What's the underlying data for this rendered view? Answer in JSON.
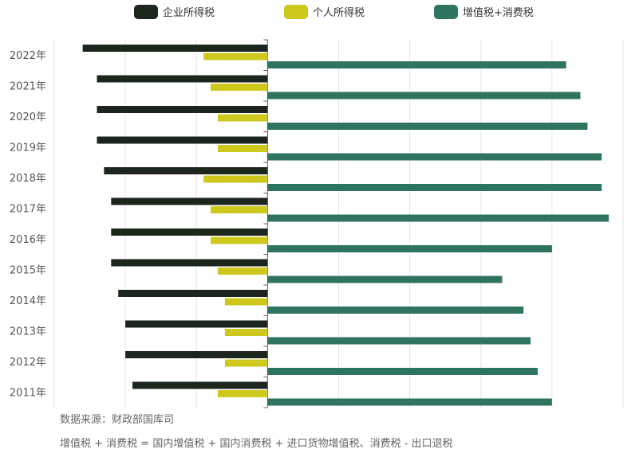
{
  "chart_data": {
    "type": "bar",
    "orientation": "horizontal",
    "categories": [
      "2022年",
      "2021年",
      "2020年",
      "2019年",
      "2018年",
      "2017年",
      "2016年",
      "2015年",
      "2014年",
      "2013年",
      "2012年",
      "2011年"
    ],
    "series": [
      {
        "name": "企业所得税",
        "color": "#1d261c",
        "values": [
          -26,
          -24,
          -24,
          -24,
          -23,
          -22,
          -22,
          -22,
          -21,
          -20,
          -20,
          -19
        ]
      },
      {
        "name": "个人所得税",
        "color": "#cfc81c",
        "values": [
          -9,
          -8,
          -7,
          -7,
          -9,
          -8,
          -8,
          -7,
          -6,
          -6,
          -6,
          -7
        ]
      },
      {
        "name": "增值税+消费税",
        "color": "#2f7361",
        "values": [
          42,
          44,
          45,
          47,
          47,
          48,
          40,
          33,
          36,
          37,
          38,
          40
        ]
      }
    ],
    "xlim": [
      -30,
      50
    ],
    "grid": true,
    "legend_position": "top"
  },
  "footnotes": {
    "source": "数据来源：财政部国库司",
    "formula": "增值税 + 消费税 =  国内增值税 + 国内消费税 + 进口货物增值税、消费税 - 出口退税"
  }
}
